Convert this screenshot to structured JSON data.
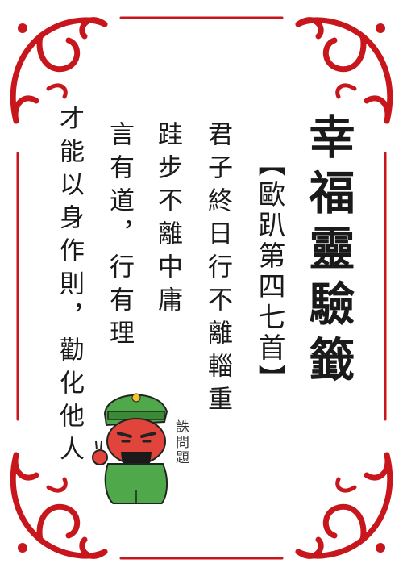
{
  "title": "幸福靈驗籤",
  "subtitle": "【歐趴第四七首】",
  "poem": [
    "君子終日行不離輜重",
    "跬步不離中庸",
    "言有道，行有理",
    "才能以身作則，勸化他人"
  ],
  "seal_text": "誅問題",
  "colors": {
    "frame_red": "#c8161d",
    "text": "#1a1a1a",
    "robe_green": "#4fa84a",
    "face_red": "#e0443b"
  },
  "icons": [
    "corner-scroll-ornament",
    "guan-gong-cartoon"
  ]
}
